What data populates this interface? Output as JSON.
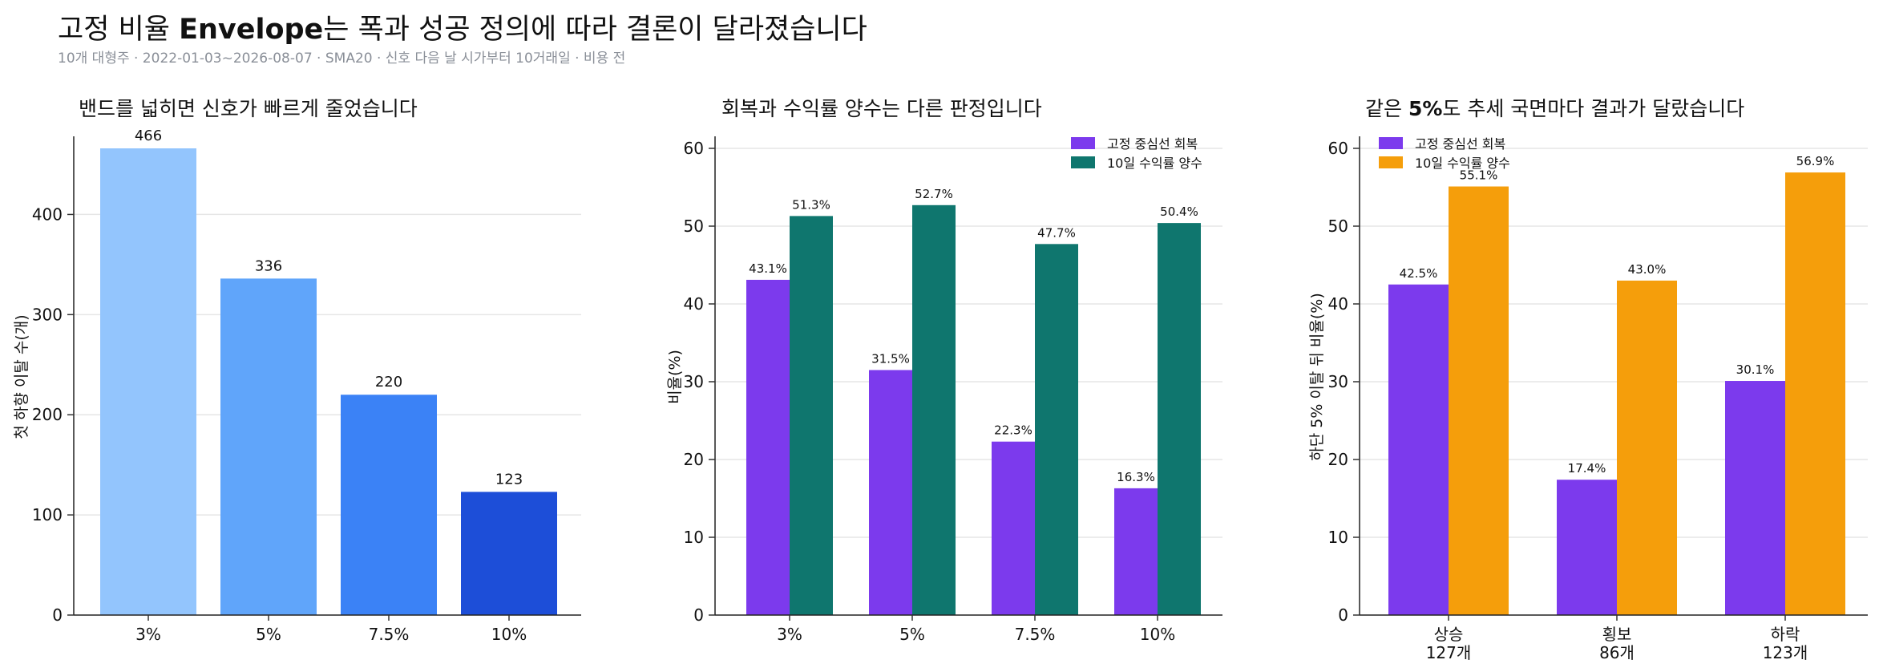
{
  "header": {
    "title_pre": "고정 비율 ",
    "title_bold": "Envelope",
    "title_post": "는 폭과 성공 정의에 따라 결론이 달라졌습니다",
    "subtitle": "10개 대형주 · 2022-01-03~2026-08-07 · SMA20 · 신호 다음 날 시가부터 10거래일 · 비용 전"
  },
  "colors": {
    "text": "#111111",
    "subtext": "#8a8f98",
    "grid": "#e6e6e6",
    "purple": "#7c3aed",
    "teal": "#0f766e",
    "orange": "#f59e0b",
    "blue_scale": [
      "#93c5fd",
      "#60a5fa",
      "#3b82f6",
      "#1d4ed8"
    ]
  },
  "chart_data": [
    {
      "type": "bar",
      "title": "밴드를 넓히면 신호가 빠르게 줄었습니다",
      "ylabel": "첫 하향 이탈 수(개)",
      "categories": [
        "3%",
        "5%",
        "7.5%",
        "10%"
      ],
      "values": [
        466,
        336,
        220,
        123
      ],
      "data_labels": [
        "466",
        "336",
        "220",
        "123"
      ],
      "ylim": [
        0,
        466
      ],
      "yticks": [
        0,
        100,
        200,
        300,
        400
      ],
      "grid": true
    },
    {
      "type": "bar",
      "title": "회복과 수익률 양수는 다른 판정입니다",
      "ylabel": "비율(%)",
      "categories": [
        "3%",
        "5%",
        "7.5%",
        "10%"
      ],
      "series": [
        {
          "name": "고정 중심선 회복",
          "values": [
            43.1,
            31.5,
            22.3,
            16.3
          ],
          "labels": [
            "43.1%",
            "31.5%",
            "22.3%",
            "16.3%"
          ]
        },
        {
          "name": "10일 수익률 양수",
          "values": [
            51.3,
            52.7,
            47.7,
            50.4
          ],
          "labels": [
            "51.3%",
            "52.7%",
            "47.7%",
            "50.4%"
          ]
        }
      ],
      "ylim": [
        0,
        60
      ],
      "yticks": [
        0,
        10,
        20,
        30,
        40,
        50,
        60
      ],
      "legend": "top-right",
      "grid": true
    },
    {
      "type": "bar",
      "title_pre": "같은 ",
      "title_bold": "5%",
      "title_post": "도 추세 국면마다 결과가 달랐습니다",
      "ylabel": "하단 5% 이탈 뒤 비율(%)",
      "categories": [
        "상승",
        "횡보",
        "하락"
      ],
      "category_counts": [
        "127개",
        "86개",
        "123개"
      ],
      "series": [
        {
          "name": "고정 중심선 회복",
          "values": [
            42.5,
            17.4,
            30.1
          ],
          "labels": [
            "42.5%",
            "17.4%",
            "30.1%"
          ]
        },
        {
          "name": "10일 수익률 양수",
          "values": [
            55.1,
            43.0,
            56.9
          ],
          "labels": [
            "55.1%",
            "43.0%",
            "56.9%"
          ]
        }
      ],
      "ylim": [
        0,
        60
      ],
      "yticks": [
        0,
        10,
        20,
        30,
        40,
        50,
        60
      ],
      "legend": "top-left",
      "grid": true
    }
  ]
}
